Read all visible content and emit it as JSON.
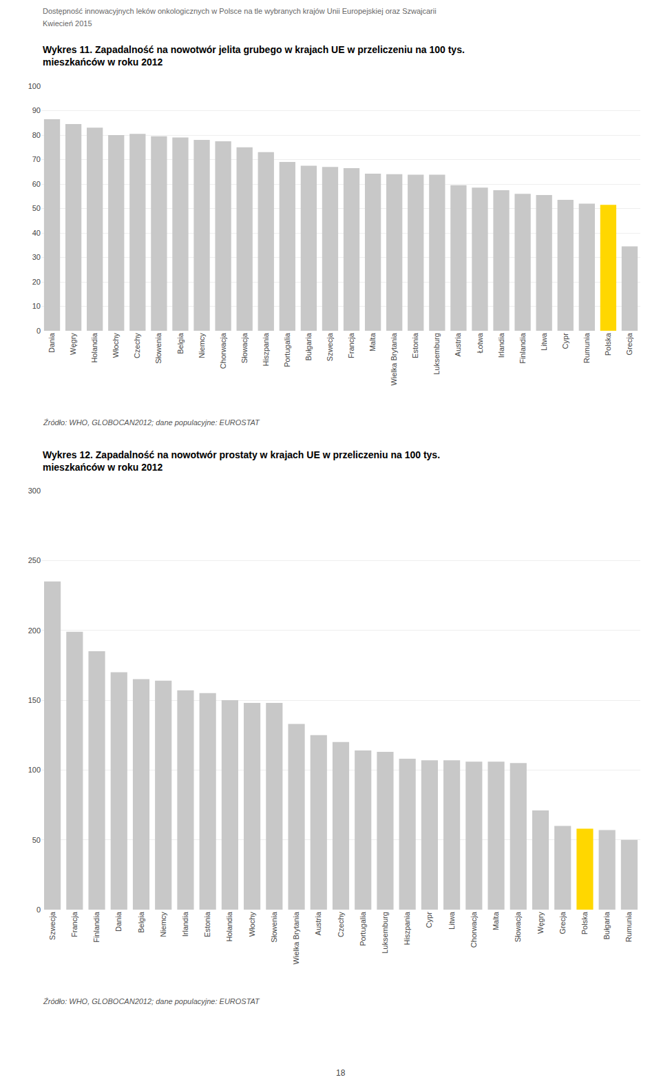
{
  "annotations": [
    "Dostępność innowacyjnych leków onkologicznych w Polsce na tle wybranych krajów Unii Europejskiej oraz Szwajcarii",
    "Kwiecień 2015",
    "18"
  ],
  "chart_data": [
    {
      "type": "bar",
      "title": "Wykres 11. Zapadalność na nowotwór jelita grubego w krajach UE w przeliczeniu na 100 tys.\nmieszkańców w roku 2012",
      "categories": [
        "Dania",
        "Węgry",
        "Holandia",
        "Włochy",
        "Czechy",
        "Słowenia",
        "Belgia",
        "Niemcy",
        "Chorwacja",
        "Słowacja",
        "Hiszpania",
        "Portugalia",
        "Bułgaria",
        "Szwecja",
        "Francja",
        "Malta",
        "Wielka Brytania",
        "Estonia",
        "Luksemburg",
        "Austria",
        "Łotwa",
        "Irlandia",
        "Finlandia",
        "Litwa",
        "Cypr",
        "Rumunia",
        "Polska",
        "Grecja"
      ],
      "values": [
        86.5,
        84.5,
        83.0,
        80.0,
        80.5,
        79.5,
        79.0,
        78.0,
        77.5,
        75.0,
        73.0,
        69.0,
        67.5,
        67.0,
        66.5,
        64.2,
        64.0,
        63.8,
        63.8,
        59.5,
        58.5,
        57.5,
        56.0,
        55.5,
        53.5,
        52.0,
        51.5,
        34.5
      ],
      "colors": [
        "#C8C8C8",
        "#C8C8C8",
        "#C8C8C8",
        "#C8C8C8",
        "#C8C8C8",
        "#C8C8C8",
        "#C8C8C8",
        "#C8C8C8",
        "#C8C8C8",
        "#C8C8C8",
        "#C8C8C8",
        "#C8C8C8",
        "#C8C8C8",
        "#C8C8C8",
        "#C8C8C8",
        "#C8C8C8",
        "#C8C8C8",
        "#C8C8C8",
        "#C8C8C8",
        "#C8C8C8",
        "#C8C8C8",
        "#C8C8C8",
        "#C8C8C8",
        "#C8C8C8",
        "#C8C8C8",
        "#C8C8C8",
        "#FFD700",
        "#C8C8C8"
      ],
      "ylim": [
        0,
        100
      ],
      "yticks": [
        0,
        10,
        20,
        30,
        40,
        50,
        60,
        70,
        80,
        90,
        100
      ],
      "grid": true,
      "annotations": [
        "Źródło: WHO, GLOBOCAN2012; dane populacyjne: EUROSTAT"
      ]
    },
    {
      "type": "bar",
      "title": "Wykres 12. Zapadalność na nowotwór prostaty w krajach UE w przeliczeniu na 100 tys.\nmieszkańców w roku 2012",
      "categories": [
        "Szwecja",
        "Francja",
        "Finlandia",
        "Dania",
        "Belgia",
        "Niemcy",
        "Irlandia",
        "Estonia",
        "Holandia",
        "Włochy",
        "Słowenia",
        "Wielka Brytania",
        "Austria",
        "Czechy",
        "Portugalia",
        "Luksemburg",
        "Hiszpania",
        "Cypr",
        "Litwa",
        "Chorwacja",
        "Malta",
        "Słowacja",
        "Węgry",
        "Grecja",
        "Polska",
        "Bułgaria",
        "Rumunia"
      ],
      "values": [
        235.0,
        199.0,
        185.0,
        170.0,
        165.0,
        164.0,
        157.0,
        155.0,
        150.0,
        148.0,
        148.0,
        133.0,
        125.0,
        120.0,
        114.0,
        113.0,
        108.0,
        107.0,
        107.0,
        106.0,
        106.0,
        105.0,
        71.0,
        60.0,
        58.0,
        57.0,
        50.0
      ],
      "colors": [
        "#C8C8C8",
        "#C8C8C8",
        "#C8C8C8",
        "#C8C8C8",
        "#C8C8C8",
        "#C8C8C8",
        "#C8C8C8",
        "#C8C8C8",
        "#C8C8C8",
        "#C8C8C8",
        "#C8C8C8",
        "#C8C8C8",
        "#C8C8C8",
        "#C8C8C8",
        "#C8C8C8",
        "#C8C8C8",
        "#C8C8C8",
        "#C8C8C8",
        "#C8C8C8",
        "#C8C8C8",
        "#C8C8C8",
        "#C8C8C8",
        "#C8C8C8",
        "#C8C8C8",
        "#FFD700",
        "#C8C8C8",
        "#C8C8C8"
      ],
      "ylim": [
        0,
        300
      ],
      "yticks": [
        0,
        50,
        100,
        150,
        200,
        250,
        300
      ],
      "grid": true,
      "annotations": [
        "Źródło: WHO, GLOBOCAN2012; dane populacyjne: EUROSTAT"
      ]
    }
  ]
}
